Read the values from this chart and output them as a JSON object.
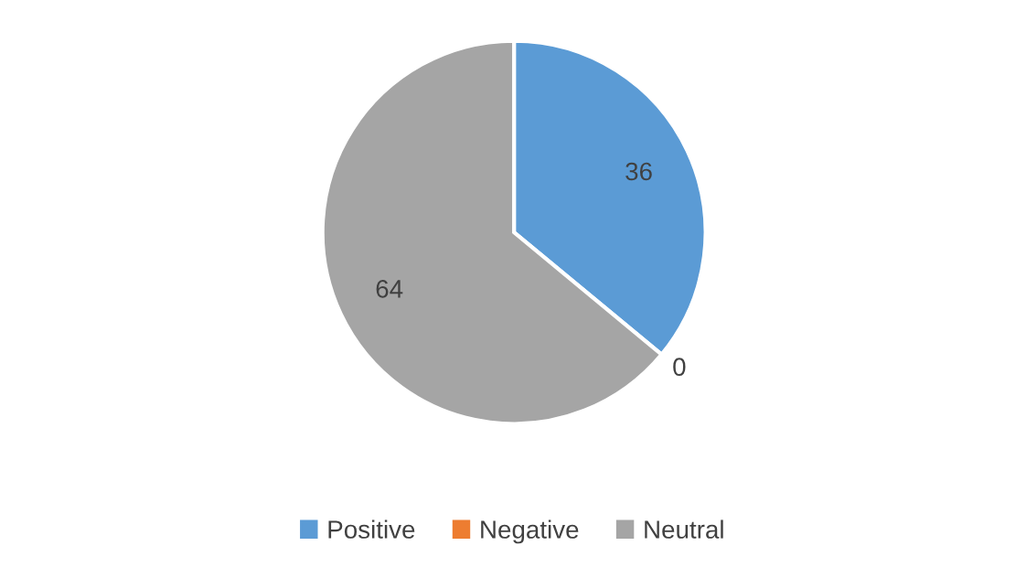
{
  "chart_data": {
    "type": "pie",
    "categories": [
      "Positive",
      "Negative",
      "Neutral"
    ],
    "values": [
      36,
      0,
      64
    ],
    "colors": [
      "#5b9bd5",
      "#ed7d31",
      "#a5a5a5"
    ],
    "value_labels": [
      "36",
      "0",
      "64"
    ],
    "legend": "bottom"
  }
}
